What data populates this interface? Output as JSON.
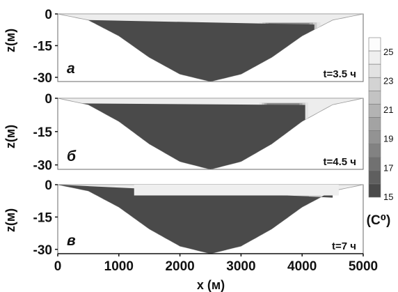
{
  "chart_data": {
    "type": "heatmap",
    "xlabel": "x (м)",
    "ylabel": "z(м)",
    "xlim": [
      0,
      5000
    ],
    "ylim": [
      -32,
      0
    ],
    "x_ticks": [
      "0",
      "1000",
      "2000",
      "3000",
      "4000",
      "5000"
    ],
    "y_ticks": [
      "0",
      "-15",
      "-30"
    ],
    "bathymetry": {
      "shape": "cosine basin",
      "x": [
        0,
        500,
        1000,
        1500,
        2000,
        2500,
        3000,
        3500,
        4000,
        4500,
        5000
      ],
      "depth": [
        0,
        -2.9,
        -10.4,
        -20.6,
        -28.5,
        -32,
        -28.5,
        -20.6,
        -10.4,
        -2.9,
        0
      ]
    },
    "panels": [
      {
        "letter": "а",
        "time_label": "t=3.5 ч",
        "cold_layer": {
          "x_from": 500,
          "x_to": 4200,
          "top_depth": -5,
          "front_x": 4200,
          "mixing_zone": [
            3300,
            4300
          ]
        }
      },
      {
        "letter": "б",
        "time_label": "t=4.5 ч",
        "cold_layer": {
          "x_from": 400,
          "x_to": 4050,
          "top_depth": -3,
          "front_x": 4050,
          "mixing_zone": [
            3300,
            4100
          ]
        }
      },
      {
        "letter": "в",
        "time_label": "t=7 ч",
        "cold_layer": {
          "x_from": 0,
          "x_to": 4500,
          "top_depth": -6,
          "front_x": 4500,
          "mixing_zone": [
            1250,
            4500
          ],
          "warm_intrusion_x": 1250
        }
      }
    ],
    "colorbar": {
      "title": "(C⁰)",
      "min": 15,
      "max": 26,
      "tick_labels": [
        "25",
        "23",
        "21",
        "19",
        "17",
        "15"
      ],
      "levels": [
        26,
        25,
        24,
        23,
        22,
        21,
        20,
        19,
        18,
        17,
        16,
        15
      ],
      "colors": [
        "#fcfcfc",
        "#efefef",
        "#e2e2e2",
        "#d3d3d3",
        "#c3c3c3",
        "#b3b3b3",
        "#a3a3a3",
        "#939393",
        "#828282",
        "#717171",
        "#5f5f5f",
        "#4a4a4a"
      ]
    },
    "colors": {
      "water_warm": "#ededed",
      "water_cold": "#4a4a4a",
      "ground": "#ffffff",
      "frame": "#6a6a6a"
    }
  }
}
